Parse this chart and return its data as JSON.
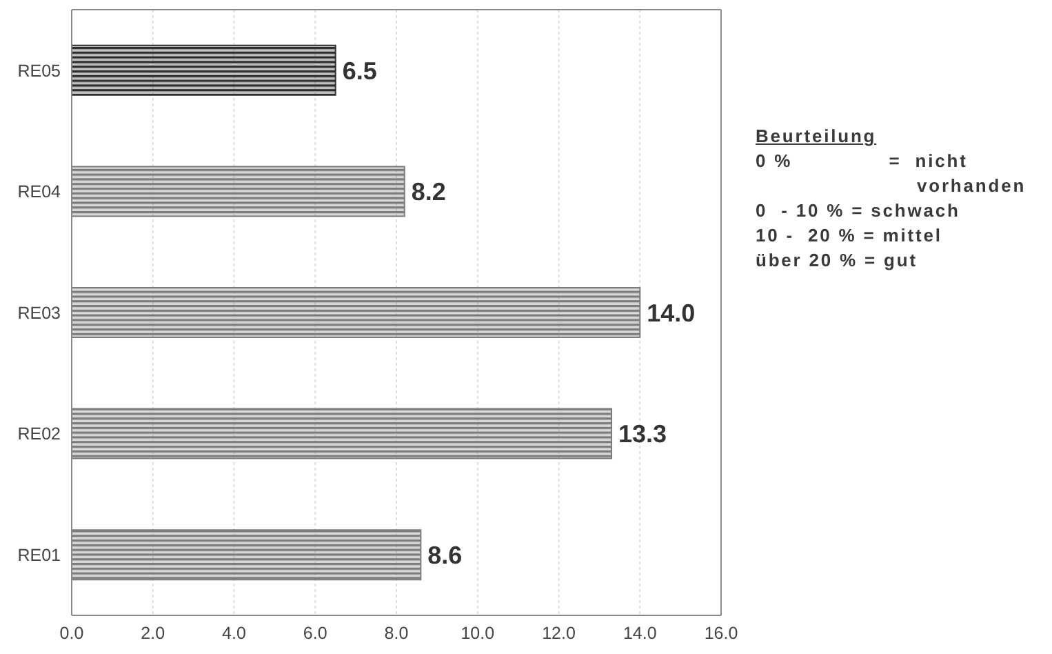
{
  "chart_data": {
    "type": "bar",
    "orientation": "horizontal",
    "categories": [
      "RE05",
      "RE04",
      "RE03",
      "RE02",
      "RE01"
    ],
    "values": [
      6.5,
      8.2,
      14.0,
      13.3,
      8.6
    ],
    "value_labels": [
      "6.5",
      "8.2",
      "14.0",
      "13.3",
      "8.6"
    ],
    "colors": [
      "#2e2e2e",
      "#7c7c7c",
      "#7c7c7c",
      "#7c7c7c",
      "#7c7c7c"
    ],
    "xlim": [
      0,
      16
    ],
    "xticks": [
      {
        "value": 0,
        "label": "0.0"
      },
      {
        "value": 2,
        "label": "2.0"
      },
      {
        "value": 4,
        "label": "4.0"
      },
      {
        "value": 6,
        "label": "6.0"
      },
      {
        "value": 8,
        "label": "8.0"
      },
      {
        "value": 10,
        "label": "10.0"
      },
      {
        "value": 12,
        "label": "12.0"
      },
      {
        "value": 14,
        "label": "14.0"
      },
      {
        "value": 16,
        "label": "16.0"
      }
    ],
    "grid": "x",
    "annotations": [
      "Beurteilung",
      "0 %              =  nicht vorhanden",
      "0  - 10 % = schwach",
      "10 -  20 % = mittel",
      "über 20 % = gut"
    ]
  }
}
